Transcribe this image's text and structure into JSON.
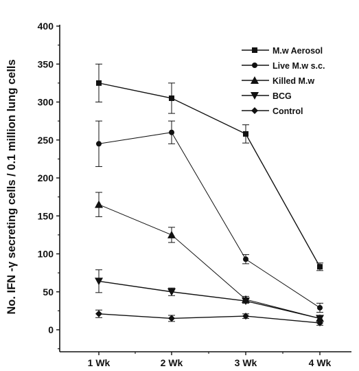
{
  "chart_data": {
    "type": "line",
    "ylabel": "No. IFN -γ secreting cells / 0.1 million lung cells",
    "xlabel": "",
    "categories": [
      "1 Wk",
      "2 Wk",
      "3 Wk",
      "4 Wk"
    ],
    "ylim": [
      -50,
      400
    ],
    "yticks": [
      0,
      50,
      100,
      150,
      200,
      250,
      300,
      350,
      400
    ],
    "grid": false,
    "legend_position": "top-right",
    "series": [
      {
        "name": "M.w Aerosol",
        "marker": "square",
        "values": [
          325,
          305,
          258,
          83
        ],
        "errors": [
          25,
          20,
          12,
          5
        ]
      },
      {
        "name": "Live M.w s.c.",
        "marker": "circle",
        "values": [
          245,
          260,
          93,
          29
        ],
        "errors": [
          30,
          15,
          6,
          6
        ]
      },
      {
        "name": "Killed M.w",
        "marker": "triangle-up",
        "values": [
          165,
          125,
          40,
          15
        ],
        "errors": [
          16,
          10,
          4,
          3
        ]
      },
      {
        "name": "BCG",
        "marker": "triangle-down",
        "values": [
          64,
          50,
          38,
          15
        ],
        "errors": [
          15,
          5,
          3,
          3
        ]
      },
      {
        "name": "Control",
        "marker": "diamond",
        "values": [
          21,
          15,
          18,
          9
        ],
        "errors": [
          5,
          4,
          3,
          3
        ]
      }
    ]
  }
}
